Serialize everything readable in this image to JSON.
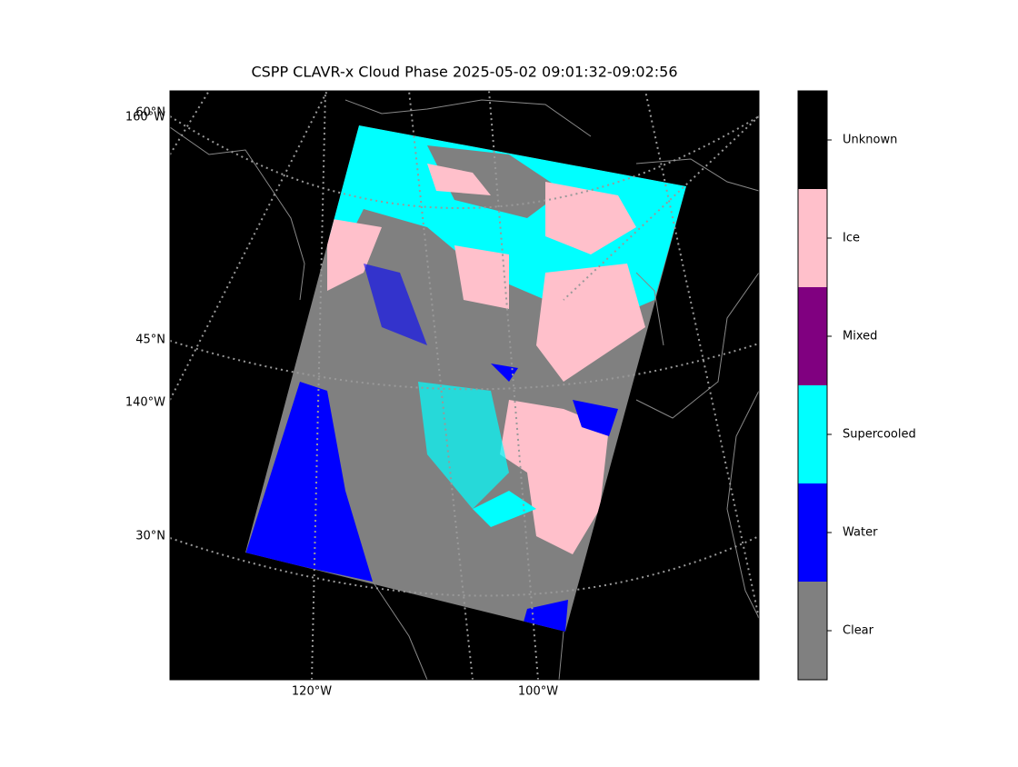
{
  "title": "CSPP CLAVR-x Cloud Phase 2025-05-02 09:01:32-09:02:56",
  "map": {
    "latitude_labels": [
      "60°N",
      "45°N",
      "30°N"
    ],
    "left_longitude_labels": [
      "160°W",
      "140°W"
    ],
    "bottom_longitude_labels": [
      "120°W",
      "100°W"
    ]
  },
  "colorbar": {
    "categories": [
      {
        "label": "Unknown",
        "color": "#000000"
      },
      {
        "label": "Ice",
        "color": "#ffc0cb"
      },
      {
        "label": "Mixed",
        "color": "#800080"
      },
      {
        "label": "Supercooled",
        "color": "#00ffff"
      },
      {
        "label": "Water",
        "color": "#0000ff"
      },
      {
        "label": "Clear",
        "color": "#808080"
      }
    ]
  }
}
